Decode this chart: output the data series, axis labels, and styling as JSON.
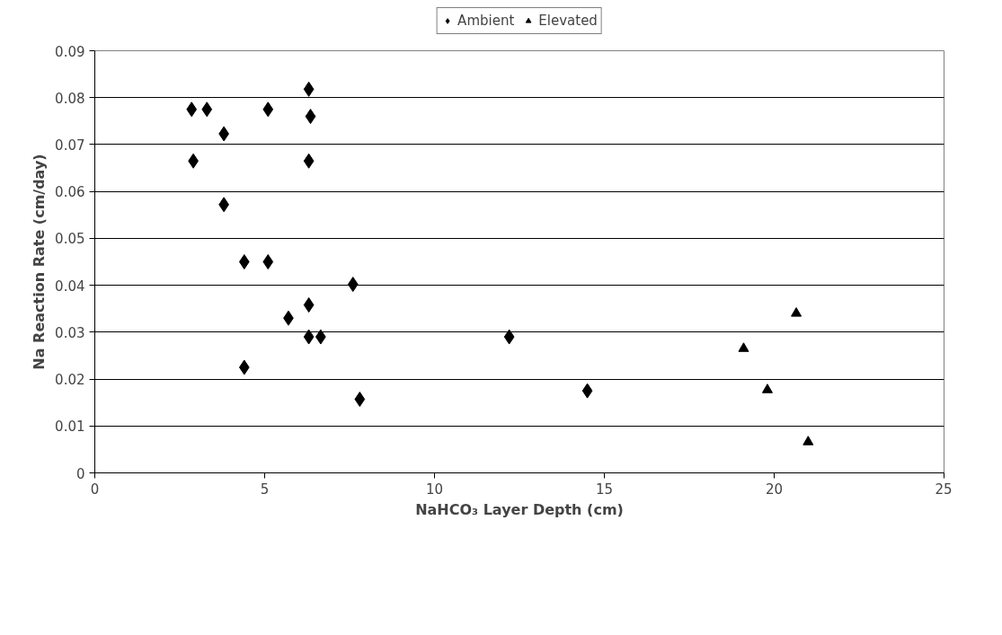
{
  "chart_data": {
    "type": "scatter",
    "xlabel": "NaHCO₃ Layer Depth (cm)",
    "ylabel": "Na Reaction Rate (cm/day)",
    "xlim": [
      0,
      25
    ],
    "xticks": [
      0,
      5,
      10,
      15,
      20,
      25
    ],
    "ylim": [
      0,
      0.09
    ],
    "yticks": [
      0,
      0.01,
      0.02,
      0.03,
      0.04,
      0.05,
      0.06,
      0.07,
      0.08,
      0.09
    ],
    "grid": "y",
    "legend": "top",
    "series": [
      {
        "name": "Ambient",
        "color": "#000000",
        "marker": "diamond",
        "x": [
          2.85,
          3.3,
          2.9,
          3.8,
          3.8,
          5.1,
          6.3,
          6.35,
          6.3,
          4.4,
          5.1,
          7.6,
          6.3,
          5.7,
          6.3,
          6.65,
          4.4,
          7.8,
          12.2,
          14.5
        ],
        "values": [
          0.0775,
          0.0775,
          0.0665,
          0.0723,
          0.0572,
          0.0775,
          0.0818,
          0.076,
          0.0665,
          0.045,
          0.045,
          0.0402,
          0.0358,
          0.033,
          0.029,
          0.029,
          0.0225,
          0.0157,
          0.029,
          0.0175
        ]
      },
      {
        "name": "Elevated",
        "color": "#000000",
        "marker": "triangle",
        "x": [
          19.1,
          19.8,
          20.65,
          21.0
        ],
        "values": [
          0.0265,
          0.0177,
          0.034,
          0.0066
        ]
      }
    ]
  }
}
